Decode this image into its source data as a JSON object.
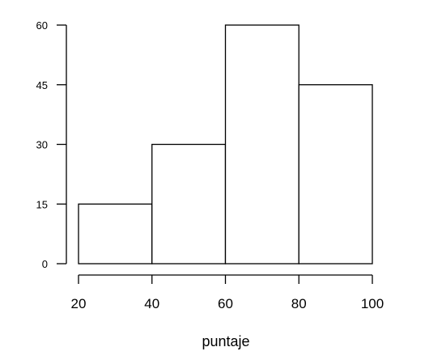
{
  "chart_data": {
    "type": "bar",
    "bins": [
      {
        "start": 20,
        "end": 40,
        "value": 15
      },
      {
        "start": 40,
        "end": 60,
        "value": 30
      },
      {
        "start": 60,
        "end": 80,
        "value": 60
      },
      {
        "start": 80,
        "end": 100,
        "value": 45
      }
    ],
    "x_ticks": [
      20,
      40,
      60,
      80,
      100
    ],
    "y_ticks": [
      0,
      15,
      30,
      45,
      60
    ],
    "xlabel": "puntaje",
    "ylabel": "",
    "title": "",
    "xlim": [
      20,
      100
    ],
    "ylim": [
      0,
      60
    ],
    "grid": false,
    "colors": {
      "bar_fill": "#ffffff",
      "bar_stroke": "#000000"
    }
  }
}
